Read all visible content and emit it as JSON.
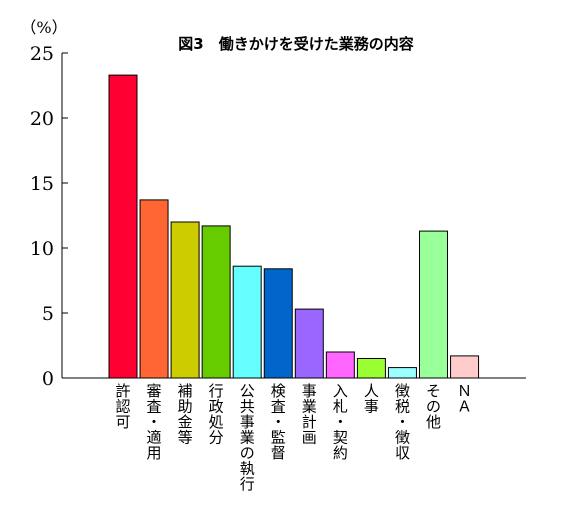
{
  "chart_data": {
    "type": "bar",
    "title": "図3　働きかけを受けた業務の内容",
    "ylabel": "（%）",
    "xlabel": "",
    "ylim": [
      0,
      25
    ],
    "yticks": [
      0,
      5,
      10,
      15,
      20,
      25
    ],
    "grid": false,
    "legend": "none",
    "categories": [
      "許認可",
      "審査・適用",
      "補助金等",
      "行政処分",
      "公共事業の執行",
      "検査・監督",
      "事業計画",
      "入札・契約",
      "人事",
      "徴税・徴収",
      "その他",
      "ＮＡ"
    ],
    "values": [
      23.3,
      13.7,
      12.0,
      11.7,
      8.6,
      8.4,
      5.3,
      2.0,
      1.5,
      0.8,
      11.3,
      1.7
    ],
    "colors": [
      "#ff0033",
      "#ff6633",
      "#cccc00",
      "#66cc00",
      "#66ffff",
      "#0066cc",
      "#9966ff",
      "#ff66ff",
      "#99ff33",
      "#99ffff",
      "#99ff99",
      "#ffcccc"
    ]
  }
}
